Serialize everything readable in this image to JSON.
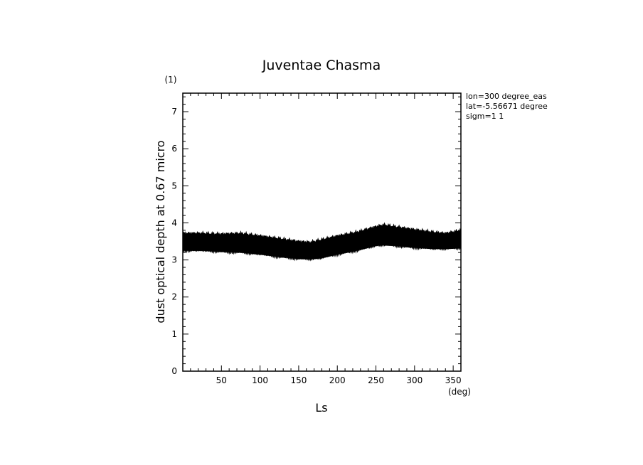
{
  "chart_data": {
    "type": "area",
    "title": "Juventae Chasma",
    "xlabel": "Ls",
    "xunit": "(deg)",
    "ylabel": "dust optical depth at 0.67 micro",
    "yunit": "(1)",
    "xlim": [
      0,
      360
    ],
    "ylim": [
      0,
      7.5
    ],
    "xticks": [
      50,
      100,
      150,
      200,
      250,
      300,
      350
    ],
    "yticks": [
      0,
      1,
      2,
      3,
      4,
      5,
      6,
      7
    ],
    "grid": false,
    "annotations": [
      "lon=300 degree_eas",
      "lat=-5.56671 degree",
      "sigm=1 1"
    ],
    "band": {
      "x": [
        0,
        25,
        50,
        75,
        100,
        125,
        150,
        165,
        180,
        200,
        225,
        250,
        260,
        275,
        300,
        325,
        340,
        360
      ],
      "lower": [
        3.25,
        3.25,
        3.22,
        3.2,
        3.15,
        3.08,
        3.03,
        3.02,
        3.05,
        3.15,
        3.25,
        3.38,
        3.4,
        3.38,
        3.33,
        3.3,
        3.3,
        3.32
      ],
      "upper": [
        3.72,
        3.72,
        3.7,
        3.72,
        3.65,
        3.58,
        3.5,
        3.48,
        3.55,
        3.65,
        3.75,
        3.9,
        3.95,
        3.9,
        3.82,
        3.75,
        3.72,
        3.8
      ]
    }
  }
}
